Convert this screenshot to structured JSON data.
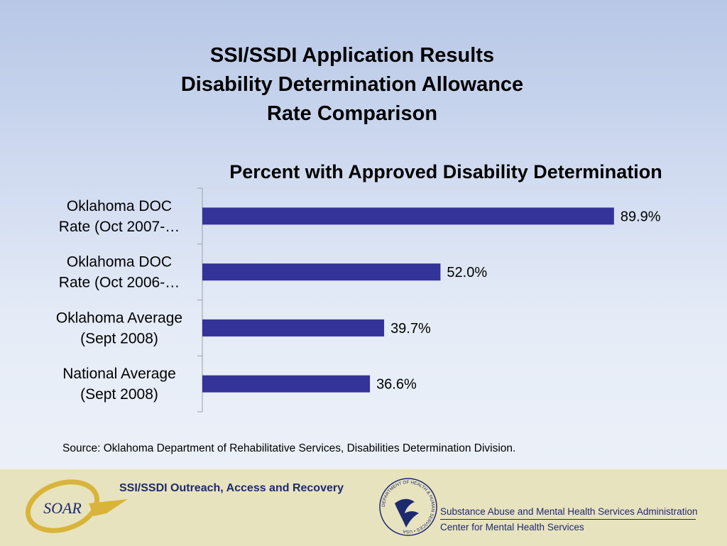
{
  "slide": {
    "title_lines": [
      "SSI/SSDI Application Results",
      "Disability Determination Allowance",
      "Rate Comparison"
    ],
    "source": "Source:  Oklahoma Department of Rehabilitative Services, Disabilities Determination Division."
  },
  "chart_data": {
    "type": "bar",
    "orientation": "horizontal",
    "title": "Percent with Approved Disability Determination",
    "categories": [
      [
        "Oklahoma DOC",
        "Rate (Oct 2007-…"
      ],
      [
        "Oklahoma DOC",
        "Rate (Oct 2006-…"
      ],
      [
        "Oklahoma Average",
        "(Sept 2008)"
      ],
      [
        "National Average",
        "(Sept 2008)"
      ]
    ],
    "values": [
      89.9,
      52.0,
      39.7,
      36.6
    ],
    "data_labels": [
      "89.9%",
      "52.0%",
      "39.7%",
      "36.6%"
    ],
    "xlim": [
      0,
      100
    ],
    "bar_color": "#333399",
    "grid": false,
    "legend": "none"
  },
  "footer": {
    "soar": {
      "logo_text": "SOAR",
      "name": "SSI/SSDI Outreach, Access and Recovery"
    },
    "samhsa": {
      "seal_text": "DEPARTMENT OF HEALTH & HUMAN SERVICES • USA",
      "line1": "Substance Abuse and Mental Health Services Administration",
      "line2": "Center for Mental Health Services"
    }
  },
  "colors": {
    "title_text": "#000000",
    "footer_bg": "#e8e3bf",
    "footer_text": "#1d2a6e",
    "soar_gold": "#d9b43a"
  }
}
